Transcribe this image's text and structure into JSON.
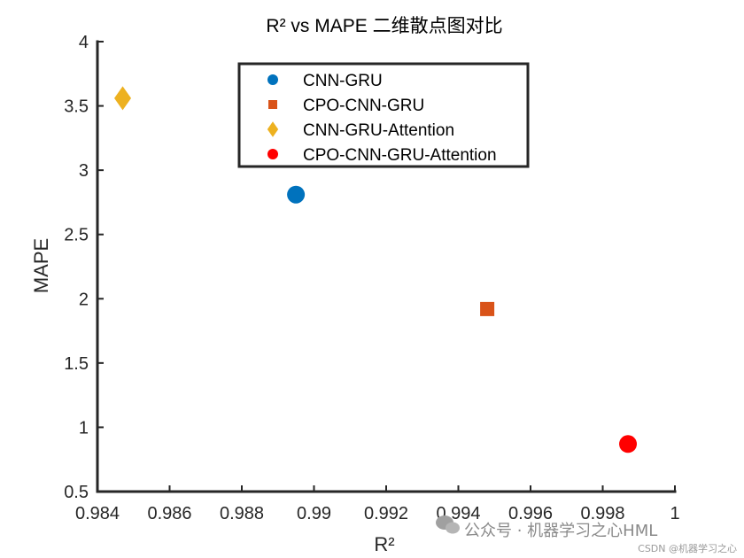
{
  "chart_data": {
    "type": "scatter",
    "title": "R² vs MAPE 二维散点图对比",
    "xlabel": "R²",
    "ylabel": "MAPE",
    "xlim": [
      0.984,
      1.0
    ],
    "ylim": [
      0.5,
      4.0
    ],
    "xticks": [
      0.984,
      0.986,
      0.988,
      0.99,
      0.992,
      0.994,
      0.996,
      0.998,
      1.0
    ],
    "xtick_labels": [
      "0.984",
      "0.986",
      "0.988",
      "0.99",
      "0.992",
      "0.994",
      "0.996",
      "0.998",
      "1"
    ],
    "yticks": [
      0.5,
      1.0,
      1.5,
      2.0,
      2.5,
      3.0,
      3.5,
      4.0
    ],
    "ytick_labels": [
      "0.5",
      "1",
      "1.5",
      "2",
      "2.5",
      "3",
      "3.5",
      "4"
    ],
    "grid": false,
    "legend_position": "top-center",
    "series": [
      {
        "name": "CNN-GRU",
        "x": 0.9895,
        "y": 2.81,
        "marker": "circle",
        "color": "#0072BD"
      },
      {
        "name": "CPO-CNN-GRU",
        "x": 0.9948,
        "y": 1.92,
        "marker": "square",
        "color": "#D95319"
      },
      {
        "name": "CNN-GRU-Attention",
        "x": 0.9847,
        "y": 3.56,
        "marker": "diamond",
        "color": "#EDB120"
      },
      {
        "name": "CPO-CNN-GRU-Attention",
        "x": 0.9987,
        "y": 0.87,
        "marker": "circle",
        "color": "#FF0000"
      }
    ]
  },
  "watermark": {
    "main_text": "公众号 · 机器学习之心HML",
    "footer_text": "CSDN @机器学习之心",
    "icon": "wechat-icon"
  }
}
